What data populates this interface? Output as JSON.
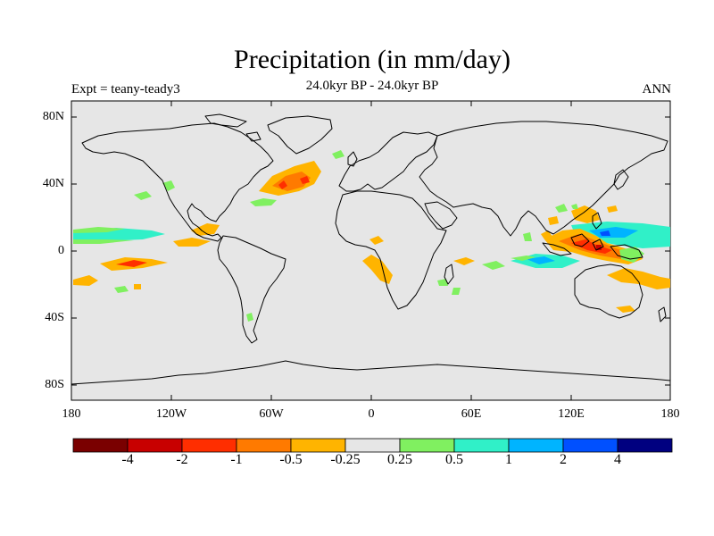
{
  "title": "Precipitation (in mm/day)",
  "subtitle_left": "Expt = teany-teady3",
  "subtitle_center": "24.0kyr BP - 24.0kyr BP",
  "subtitle_right": "ANN",
  "lat_ticks": [
    "80N",
    "40N",
    "0",
    "40S",
    "80S"
  ],
  "lon_ticks": [
    "180",
    "120W",
    "60W",
    "0",
    "60E",
    "120E",
    "180"
  ],
  "colorbar": {
    "colors": [
      "#7a0000",
      "#c80000",
      "#ff2e00",
      "#ff7a00",
      "#ffb400",
      "#e6e6e6",
      "#80f060",
      "#30f0c8",
      "#00b4ff",
      "#0050ff",
      "#000080"
    ],
    "labels": [
      "-4",
      "-2",
      "-1",
      "-0.5",
      "-0.25",
      "0.25",
      "0.5",
      "1",
      "2",
      "4"
    ]
  },
  "colors": {
    "land_ocean_bg": "#e6e6e6",
    "coastline": "#000000"
  }
}
